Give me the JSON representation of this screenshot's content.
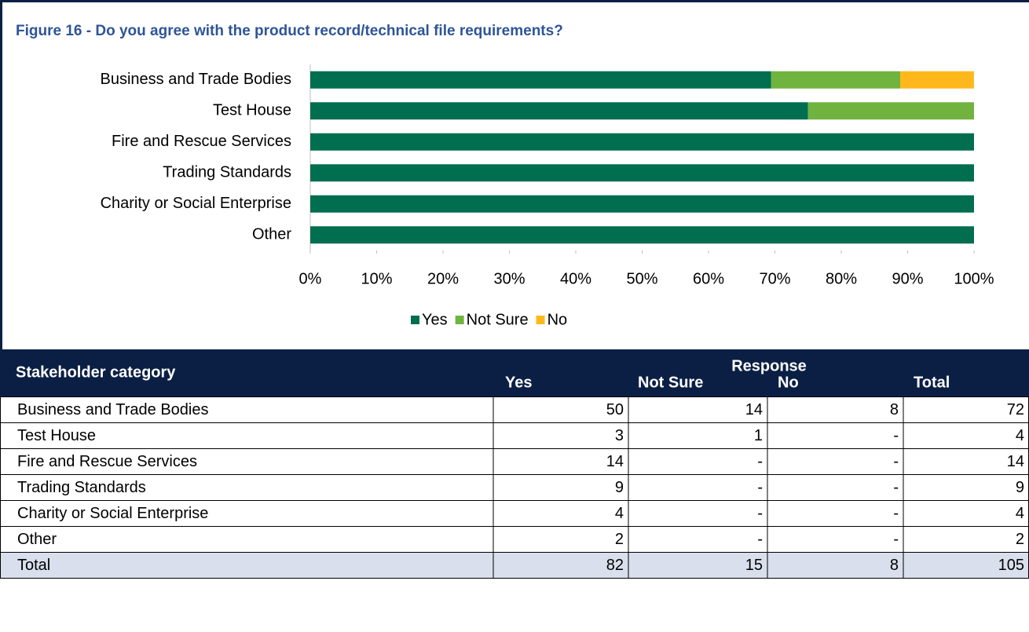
{
  "chart_data": {
    "type": "bar",
    "orientation": "horizontal",
    "stacked": true,
    "title": "Figure 16 - Do you agree with the product record/technical file requirements?",
    "categories": [
      "Business and Trade Bodies",
      "Test House",
      "Fire and Rescue Services",
      "Trading Standards",
      "Charity or Social Enterprise",
      "Other"
    ],
    "series": [
      {
        "name": "Yes",
        "color": "#006e4f",
        "values": [
          69.44,
          75,
          100,
          100,
          100,
          100
        ]
      },
      {
        "name": "Not Sure",
        "color": "#70b33f",
        "values": [
          19.44,
          25,
          0,
          0,
          0,
          0
        ]
      },
      {
        "name": "No",
        "color": "#ffb81c",
        "values": [
          11.11,
          0,
          0,
          0,
          0,
          0
        ]
      }
    ],
    "xlim": [
      0,
      100
    ],
    "xticks": [
      {
        "value": 0,
        "label": "0%"
      },
      {
        "value": 10,
        "label": "10%"
      },
      {
        "value": 20,
        "label": "20%"
      },
      {
        "value": 30,
        "label": "30%"
      },
      {
        "value": 40,
        "label": "40%"
      },
      {
        "value": 50,
        "label": "50%"
      },
      {
        "value": 60,
        "label": "60%"
      },
      {
        "value": 70,
        "label": "70%"
      },
      {
        "value": 80,
        "label": "80%"
      },
      {
        "value": 90,
        "label": "90%"
      },
      {
        "value": 100,
        "label": "100%"
      }
    ],
    "legend": "bottom"
  },
  "table": {
    "header": "Stakeholder category",
    "group_header": "Response",
    "columns": [
      "Yes",
      "Not Sure",
      "No",
      "Total"
    ],
    "rows": [
      [
        "Business and Trade Bodies",
        50,
        14,
        8,
        72
      ],
      [
        "Test House",
        3,
        1,
        "-",
        4
      ],
      [
        "Fire and Rescue Services",
        14,
        "-",
        "-",
        14
      ],
      [
        "Trading Standards",
        9,
        "-",
        "-",
        9
      ],
      [
        "Charity or Social Enterprise",
        4,
        "-",
        "-",
        4
      ],
      [
        "Other",
        2,
        "-",
        "-",
        2
      ],
      [
        "Total",
        82,
        15,
        8,
        105
      ]
    ]
  }
}
